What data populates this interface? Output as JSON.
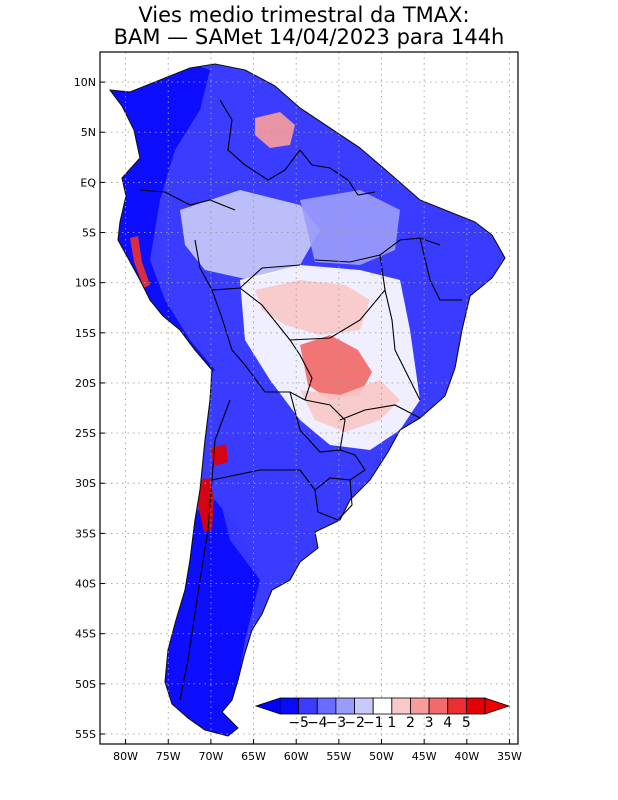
{
  "title": {
    "line1": "Vies medio trimestral da TMAX:",
    "line2": "BAM — SAMet 14/04/2023  para 144h"
  },
  "map": {
    "lon_range": [
      -83,
      -34
    ],
    "lat_range": [
      -56,
      13
    ],
    "lat_ticks": [
      {
        "value": 10,
        "label": "10N"
      },
      {
        "value": 5,
        "label": "5N"
      },
      {
        "value": 0,
        "label": "EQ"
      },
      {
        "value": -5,
        "label": "5S"
      },
      {
        "value": -10,
        "label": "10S"
      },
      {
        "value": -15,
        "label": "15S"
      },
      {
        "value": -20,
        "label": "20S"
      },
      {
        "value": -25,
        "label": "25S"
      },
      {
        "value": -30,
        "label": "30S"
      },
      {
        "value": -35,
        "label": "35S"
      },
      {
        "value": -40,
        "label": "40S"
      },
      {
        "value": -45,
        "label": "45S"
      },
      {
        "value": -50,
        "label": "50S"
      },
      {
        "value": -55,
        "label": "55S"
      }
    ],
    "lon_ticks": [
      {
        "value": -80,
        "label": "80W"
      },
      {
        "value": -75,
        "label": "75W"
      },
      {
        "value": -70,
        "label": "70W"
      },
      {
        "value": -65,
        "label": "65W"
      },
      {
        "value": -60,
        "label": "60W"
      },
      {
        "value": -55,
        "label": "55W"
      },
      {
        "value": -50,
        "label": "50W"
      },
      {
        "value": -45,
        "label": "45W"
      },
      {
        "value": -40,
        "label": "40W"
      },
      {
        "value": -35,
        "label": "35W"
      }
    ]
  },
  "colorbar": {
    "labels": [
      "−5",
      "−4",
      "−3",
      "−2",
      "−1",
      "1",
      "2",
      "3",
      "4",
      "5"
    ],
    "colors": [
      "#0a0aff",
      "#3a3cff",
      "#6a6cff",
      "#9a9cfb",
      "#c8caf9",
      "#ffffff",
      "#f9c8c8",
      "#f79c9c",
      "#f26a6a",
      "#ea3030",
      "#e40000"
    ],
    "low_arrow_color": "#0000ff",
    "high_arrow_color": "#ee0000"
  },
  "bias_fields": {
    "ocean_color": "#ffffff",
    "land_base_color": "#3a3cff",
    "regions": [
      {
        "name": "andes-north",
        "value": -5,
        "color": "#0a0aff"
      },
      {
        "name": "patagonia",
        "value": -5,
        "color": "#0a0aff"
      },
      {
        "name": "southern-brazil",
        "value": -4,
        "color": "#3a3cff"
      },
      {
        "name": "amazon-west",
        "value": -2,
        "color": "#c8caf9"
      },
      {
        "name": "amazon-center",
        "value": -3,
        "color": "#9a9cfb"
      },
      {
        "name": "northeast-brazil",
        "value": -4,
        "color": "#3a3cff"
      },
      {
        "name": "central-brazil",
        "value": 1,
        "color": "#ffffff"
      },
      {
        "name": "mato-grosso",
        "value": 2,
        "color": "#f9c8c8"
      },
      {
        "name": "pantanal",
        "value": 4,
        "color": "#f26a6a"
      },
      {
        "name": "parana-basin",
        "value": 2,
        "color": "#f9c8c8"
      },
      {
        "name": "guiana-highlands",
        "value": 2,
        "color": "#f79c9c"
      },
      {
        "name": "andes-chile",
        "value": 5,
        "color": "#e40000"
      },
      {
        "name": "peru-coast",
        "value": 4,
        "color": "#ea3030"
      }
    ]
  }
}
